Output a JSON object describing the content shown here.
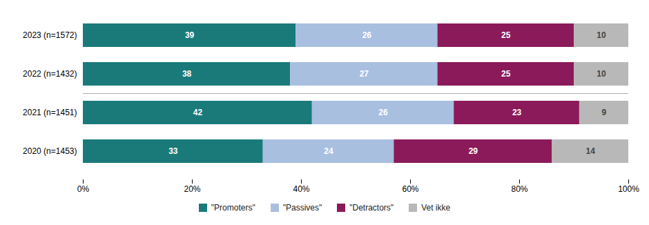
{
  "chart_data": {
    "type": "bar",
    "orientation": "horizontal",
    "stacked": true,
    "data_labels": true,
    "legend": "bottom",
    "grid": false,
    "categories": [
      "2023 (n=1572)",
      "2022 (n=1432)",
      "2021 (n=1451)",
      "2020 (n=1453)"
    ],
    "series": [
      {
        "name": "\"Promoters\"",
        "color": "#1a7a7a",
        "values": [
          39,
          38,
          42,
          33
        ]
      },
      {
        "name": "\"Passives\"",
        "color": "#a8bfe0",
        "values": [
          26,
          27,
          26,
          24
        ]
      },
      {
        "name": "\"Detractors\"",
        "color": "#8b1a5a",
        "values": [
          25,
          25,
          23,
          29
        ]
      },
      {
        "name": "Vet ikke",
        "color": "#b8b8b8",
        "values": [
          10,
          10,
          9,
          14
        ]
      }
    ],
    "xlim": [
      0,
      100
    ],
    "xticks": [
      {
        "value": 0,
        "label": "0%"
      },
      {
        "value": 20,
        "label": "20%"
      },
      {
        "value": 40,
        "label": "40%"
      },
      {
        "value": 60,
        "label": "60%"
      },
      {
        "value": 80,
        "label": "80%"
      },
      {
        "value": 100,
        "label": "100%"
      }
    ]
  }
}
